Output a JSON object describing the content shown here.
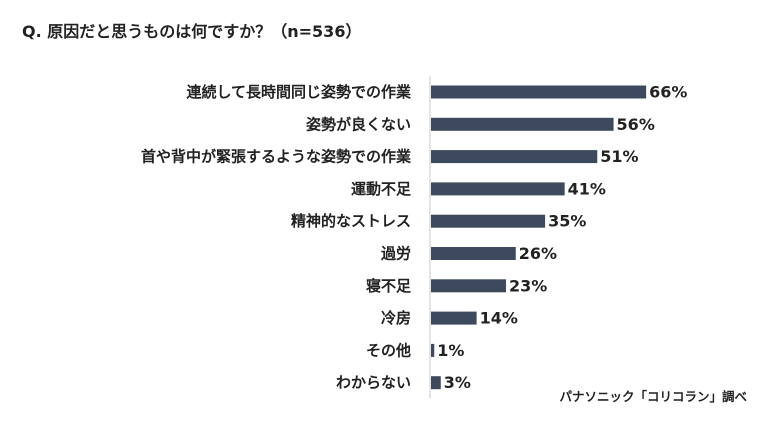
{
  "chart_data": {
    "type": "bar",
    "orientation": "horizontal",
    "title": "Q. 原因だと思うものは何ですか？（n=536）",
    "categories": [
      "連続して長時間同じ姿勢での作業",
      "姿勢が良くない",
      "首や背中が緊張するような姿勢での作業",
      "運動不足",
      "精神的なストレス",
      "過労",
      "寝不足",
      "冷房",
      "その他",
      "わからない"
    ],
    "values": [
      66,
      56,
      51,
      41,
      35,
      26,
      23,
      14,
      1,
      3
    ],
    "value_labels": [
      "66%",
      "56%",
      "51%",
      "41%",
      "35%",
      "26%",
      "23%",
      "14%",
      "1%",
      "3%"
    ],
    "unit": "%",
    "xlim": [
      0,
      100
    ],
    "grid": false,
    "legend": "none",
    "bar_color": "#3d4a5e"
  },
  "source_note": "パナソニック「コリコラン」調べ"
}
